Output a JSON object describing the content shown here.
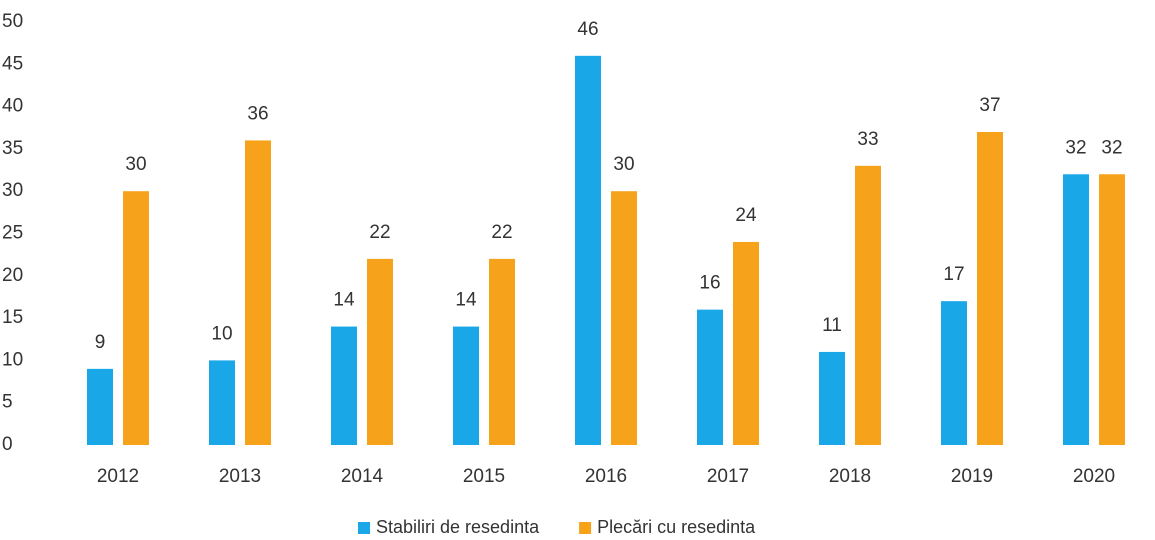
{
  "chart_data": {
    "type": "bar",
    "categories": [
      "2012",
      "2013",
      "2014",
      "2015",
      "2016",
      "2017",
      "2018",
      "2019",
      "2020"
    ],
    "series": [
      {
        "name": "Stabiliri de resedinta",
        "color": "#1aa7e8",
        "values": [
          9,
          10,
          14,
          14,
          46,
          16,
          11,
          17,
          32
        ]
      },
      {
        "name": "Plecări cu resedinta",
        "color": "#f7a21b",
        "values": [
          30,
          36,
          22,
          22,
          30,
          24,
          33,
          37,
          32
        ]
      }
    ],
    "ylim": [
      0,
      50
    ],
    "yticks": [
      0,
      5,
      10,
      15,
      20,
      25,
      30,
      35,
      40,
      45,
      50
    ],
    "grid": false,
    "legend": "bottom"
  }
}
